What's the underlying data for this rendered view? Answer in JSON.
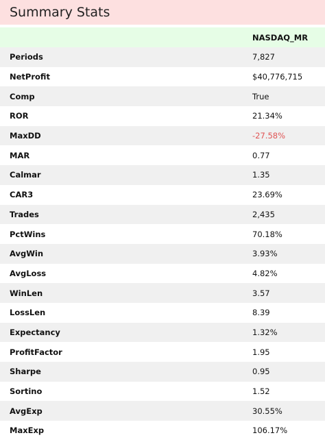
{
  "title": "Summary Stats",
  "column_header": "NASDAQ_MR",
  "negative_color": "#e05555",
  "rows": [
    {
      "label": "Periods",
      "value": "7,827"
    },
    {
      "label": "NetProfit",
      "value": "$40,776,715"
    },
    {
      "label": "Comp",
      "value": "True"
    },
    {
      "label": "ROR",
      "value": "21.34%"
    },
    {
      "label": "MaxDD",
      "value": "-27.58%"
    },
    {
      "label": "MAR",
      "value": "0.77"
    },
    {
      "label": "Calmar",
      "value": "1.35"
    },
    {
      "label": "CAR3",
      "value": "23.69%"
    },
    {
      "label": "Trades",
      "value": "2,435"
    },
    {
      "label": "PctWins",
      "value": "70.18%"
    },
    {
      "label": "AvgWin",
      "value": "3.93%"
    },
    {
      "label": "AvgLoss",
      "value": "4.82%"
    },
    {
      "label": "WinLen",
      "value": "3.57"
    },
    {
      "label": "LossLen",
      "value": "8.39"
    },
    {
      "label": "Expectancy",
      "value": "1.32%"
    },
    {
      "label": "ProfitFactor",
      "value": "1.95"
    },
    {
      "label": "Sharpe",
      "value": "0.95"
    },
    {
      "label": "Sortino",
      "value": "1.52"
    },
    {
      "label": "AvgExp",
      "value": "30.55%"
    },
    {
      "label": "MaxExp",
      "value": "106.17%"
    }
  ]
}
